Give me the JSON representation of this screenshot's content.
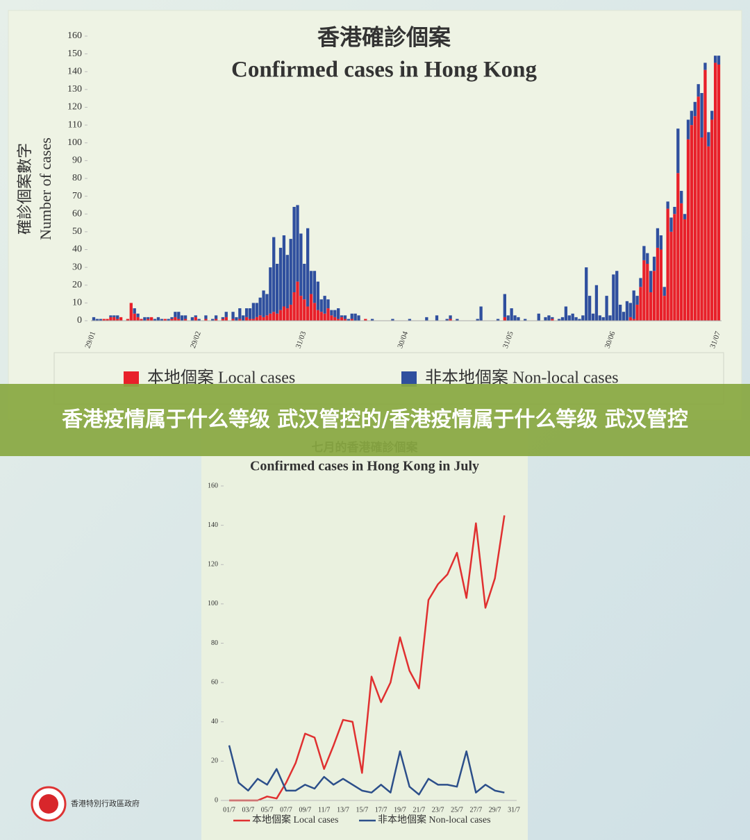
{
  "banner": "香港疫情属于什么等级 武汉管控的/香港疫情属于什么等级 武汉管控",
  "logo_text": "香港特別行政區政府",
  "chart_data": [
    {
      "type": "bar",
      "stacked": true,
      "title": "香港確診個案",
      "subtitle": "Confirmed cases in Hong Kong",
      "ylabel": [
        "確診個案數字",
        "Number of cases"
      ],
      "categories": [
        "29/01",
        null,
        null,
        null,
        null,
        null,
        null,
        null,
        null,
        null,
        null,
        null,
        null,
        null,
        null,
        null,
        null,
        null,
        null,
        null,
        null,
        null,
        null,
        null,
        null,
        null,
        null,
        null,
        null,
        null,
        null,
        "29/02",
        null,
        null,
        null,
        null,
        null,
        null,
        null,
        null,
        null,
        null,
        null,
        null,
        null,
        null,
        null,
        null,
        null,
        null,
        null,
        null,
        null,
        null,
        null,
        null,
        null,
        null,
        null,
        null,
        null,
        null,
        "31/03",
        null,
        null,
        null,
        null,
        null,
        null,
        null,
        null,
        null,
        null,
        null,
        null,
        null,
        null,
        null,
        null,
        null,
        null,
        null,
        null,
        null,
        null,
        null,
        null,
        null,
        null,
        null,
        null,
        null,
        "30/04",
        null,
        null,
        null,
        null,
        null,
        null,
        null,
        null,
        null,
        null,
        null,
        null,
        null,
        null,
        null,
        null,
        null,
        null,
        null,
        null,
        null,
        null,
        null,
        null,
        null,
        null,
        null,
        null,
        null,
        null,
        "31/05",
        null,
        null,
        null,
        null,
        null,
        null,
        null,
        null,
        null,
        null,
        null,
        null,
        null,
        null,
        null,
        null,
        null,
        null,
        null,
        null,
        null,
        null,
        null,
        null,
        null,
        null,
        null,
        null,
        null,
        "30/06",
        null,
        null,
        null,
        null,
        null,
        null,
        null,
        null,
        null,
        null,
        null,
        null,
        null,
        null,
        null,
        null,
        null,
        null,
        null,
        null,
        null,
        null,
        null,
        null,
        null,
        null,
        null,
        null,
        null,
        null,
        "31/07"
      ],
      "series": [
        {
          "name": "本地個案 Local cases",
          "color": "#e8202a",
          "values": [
            0,
            0,
            0,
            1,
            1,
            2,
            2,
            1,
            2,
            0,
            1,
            10,
            4,
            2,
            1,
            0,
            1,
            2,
            0,
            0,
            0,
            1,
            0,
            1,
            2,
            1,
            0,
            1,
            0,
            0,
            2,
            0,
            0,
            1,
            0,
            0,
            1,
            0,
            1,
            2,
            0,
            1,
            0,
            1,
            0,
            2,
            1,
            1,
            2,
            3,
            2,
            3,
            4,
            5,
            4,
            6,
            8,
            7,
            9,
            16,
            22,
            14,
            12,
            8,
            15,
            10,
            6,
            5,
            4,
            7,
            3,
            2,
            1,
            2,
            1,
            0,
            1,
            0,
            0,
            0,
            1,
            0,
            0,
            0,
            0,
            0,
            0,
            0,
            0,
            0,
            0,
            0,
            0,
            0,
            0,
            0,
            0,
            0,
            0,
            0,
            0,
            0,
            0,
            0,
            0,
            1,
            0,
            0,
            0,
            0,
            0,
            0,
            0,
            0,
            0,
            0,
            0,
            0,
            0,
            0,
            0,
            2,
            0,
            0,
            0,
            0,
            0,
            0,
            0,
            0,
            0,
            0,
            0,
            0,
            0,
            1,
            0,
            0,
            0,
            0,
            0,
            0,
            0,
            0,
            0,
            0,
            0,
            0,
            0,
            0,
            0,
            0,
            0,
            0,
            0,
            0,
            0,
            0,
            2,
            1,
            9,
            19,
            34,
            32,
            16,
            28,
            41,
            40,
            14,
            63,
            50,
            60,
            83,
            66,
            57,
            102,
            110,
            115,
            126,
            103,
            141,
            98,
            113,
            145,
            144
          ]
        },
        {
          "name": "非本地個案 Non-local cases",
          "color": "#2f4f9e",
          "values": [
            2,
            1,
            1,
            0,
            0,
            1,
            1,
            2,
            0,
            0,
            0,
            0,
            3,
            2,
            0,
            2,
            1,
            0,
            1,
            2,
            1,
            0,
            1,
            1,
            3,
            4,
            3,
            2,
            0,
            2,
            1,
            1,
            0,
            2,
            0,
            1,
            2,
            0,
            1,
            3,
            0,
            4,
            2,
            6,
            3,
            5,
            6,
            9,
            8,
            10,
            15,
            12,
            26,
            42,
            28,
            35,
            40,
            30,
            37,
            48,
            43,
            35,
            20,
            44,
            13,
            18,
            16,
            7,
            10,
            5,
            3,
            4,
            6,
            1,
            2,
            1,
            3,
            4,
            3,
            0,
            0,
            0,
            1,
            0,
            0,
            0,
            0,
            0,
            1,
            0,
            0,
            0,
            0,
            1,
            0,
            0,
            0,
            0,
            2,
            0,
            0,
            3,
            0,
            0,
            1,
            2,
            0,
            1,
            0,
            0,
            0,
            0,
            0,
            1,
            8,
            0,
            0,
            0,
            0,
            1,
            0,
            13,
            3,
            7,
            3,
            2,
            0,
            1,
            0,
            0,
            0,
            4,
            0,
            2,
            3,
            1,
            0,
            1,
            2,
            8,
            3,
            4,
            2,
            1,
            3,
            30,
            14,
            4,
            20,
            3,
            2,
            14,
            3,
            26,
            28,
            9,
            5,
            11,
            8,
            16,
            5,
            5,
            8,
            6,
            12,
            8,
            11,
            8,
            5,
            4,
            8,
            4,
            25,
            7,
            3,
            11,
            8,
            8,
            7,
            25,
            4,
            8,
            5,
            4,
            5
          ]
        }
      ],
      "ylim": [
        0,
        160
      ],
      "yticks": [
        0,
        10,
        20,
        30,
        40,
        50,
        60,
        70,
        80,
        90,
        100,
        110,
        120,
        130,
        140,
        150,
        160
      ],
      "grid": false
    },
    {
      "type": "line",
      "title": "七月的香港確診個案",
      "subtitle": "Confirmed cases in Hong Kong in July",
      "categories": [
        "01/7",
        null,
        "03/7",
        null,
        "05/7",
        null,
        "07/7",
        null,
        "09/7",
        null,
        "11/7",
        null,
        "13/7",
        null,
        "15/7",
        null,
        "17/7",
        null,
        "19/7",
        null,
        "21/7",
        null,
        "23/7",
        null,
        "25/7",
        null,
        "27/7",
        null,
        "29/7",
        null,
        "31/7"
      ],
      "series": [
        {
          "name": "本地個案 Local cases",
          "color": "#e03030",
          "values": [
            0,
            0,
            0,
            0,
            2,
            1,
            9,
            19,
            34,
            32,
            16,
            28,
            41,
            40,
            14,
            63,
            50,
            60,
            83,
            66,
            57,
            102,
            110,
            115,
            126,
            103,
            141,
            98,
            113,
            145,
            null
          ]
        },
        {
          "name": "非本地個案 Non-local cases",
          "color": "#2c4f8a",
          "values": [
            28,
            9,
            5,
            11,
            8,
            16,
            5,
            5,
            8,
            6,
            12,
            8,
            11,
            8,
            5,
            4,
            8,
            4,
            25,
            7,
            3,
            11,
            8,
            8,
            7,
            25,
            4,
            8,
            5,
            4,
            null
          ]
        }
      ],
      "ylim": [
        0,
        160
      ],
      "yticks": [
        0,
        20,
        40,
        60,
        80,
        100,
        120,
        140,
        160
      ],
      "grid": false
    }
  ]
}
